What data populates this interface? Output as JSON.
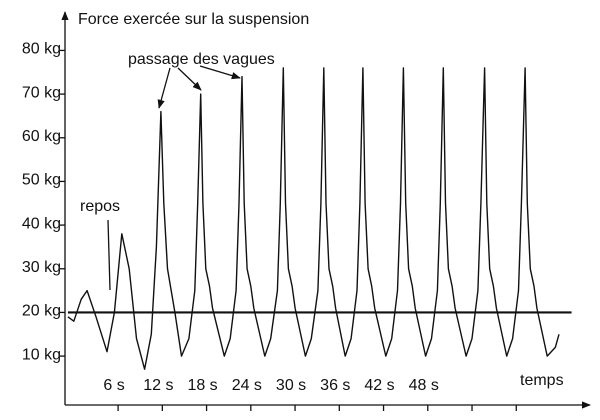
{
  "chart_data": {
    "type": "line",
    "title": "Force exercée sur la suspension",
    "x_label": "temps",
    "annotations": [
      {
        "text": "repos"
      },
      {
        "text": "passage des vagues"
      }
    ],
    "reference_line": 20,
    "xlim": [
      -1.2,
      70
    ],
    "ylim": [
      -1.2,
      88.8
    ],
    "xticks": [
      {
        "value": 6,
        "label": "6 s"
      },
      {
        "value": 12,
        "label": "12 s"
      },
      {
        "value": 18,
        "label": "18 s"
      },
      {
        "value": 24,
        "label": "24 s"
      },
      {
        "value": 30,
        "label": "30 s"
      },
      {
        "value": 36,
        "label": "36 s"
      },
      {
        "value": 42,
        "label": "42 s"
      },
      {
        "value": 48,
        "label": "48 s"
      },
      {
        "value": 54,
        "label": null
      },
      {
        "value": 60,
        "label": null
      }
    ],
    "yticks": [
      {
        "value": 10,
        "label": "10 kg"
      },
      {
        "value": 20,
        "label": "20 kg"
      },
      {
        "value": 30,
        "label": "30 kg"
      },
      {
        "value": 40,
        "label": "40 kg"
      },
      {
        "value": 50,
        "label": "50 kg"
      },
      {
        "value": 60,
        "label": "60 kg"
      },
      {
        "value": 70,
        "label": "70 kg"
      },
      {
        "value": 80,
        "label": "80 kg"
      }
    ],
    "color": "#111111",
    "x": [
      -0.8,
      0,
      1,
      1.8,
      3,
      4.5,
      5.5,
      6.5,
      7.5,
      8.5,
      9.6,
      10.5,
      11.2,
      11.8,
      12.2,
      12.7,
      13.2,
      13.7,
      14.6,
      15.6,
      16.4,
      16.8,
      17.2,
      17.5,
      17.9,
      18.4,
      18.8,
      20.4,
      21.2,
      22,
      22.4,
      22.8,
      23.1,
      23.5,
      24,
      24.4,
      25.9,
      26.7,
      27.6,
      28,
      28.4,
      28.7,
      29.1,
      29.6,
      30,
      31.4,
      32.2,
      33.1,
      33.5,
      33.9,
      34.2,
      34.6,
      35.1,
      35.5,
      36.8,
      37.6,
      38.4,
      38.8,
      39.2,
      39.5,
      39.9,
      40.4,
      40.8,
      42.3,
      43.1,
      43.9,
      44.3,
      44.7,
      45,
      45.4,
      45.9,
      46.3,
      47.7,
      48.5,
      49.3,
      49.7,
      50.1,
      50.4,
      50.8,
      51.3,
      51.7,
      53.2,
      54,
      54.8,
      55.2,
      55.7,
      56,
      56.4,
      56.9,
      57.3,
      58.7,
      59.5,
      60.3,
      60.7,
      61.2,
      61.5,
      61.9,
      62.4,
      62.8,
      64.2,
      65.3,
      65.8
    ],
    "values": [
      19,
      18,
      23,
      25,
      19,
      11,
      20,
      38,
      30,
      14,
      7,
      15,
      35,
      66,
      45,
      30,
      25,
      20,
      10,
      14,
      25,
      45,
      70,
      45,
      30,
      26,
      21,
      10,
      14,
      25,
      45,
      74,
      45,
      30,
      26,
      21,
      10,
      14,
      25,
      45,
      76,
      45,
      30,
      26,
      21,
      10,
      14,
      25,
      45,
      76,
      45,
      30,
      26,
      21,
      10,
      14,
      25,
      45,
      76,
      45,
      30,
      26,
      21,
      10,
      14,
      25,
      45,
      76,
      45,
      30,
      26,
      21,
      10,
      14,
      25,
      45,
      76,
      45,
      30,
      26,
      21,
      10,
      14,
      25,
      45,
      76,
      45,
      30,
      26,
      21,
      10,
      14,
      25,
      45,
      76,
      45,
      30,
      26,
      21,
      10,
      12,
      15
    ]
  }
}
